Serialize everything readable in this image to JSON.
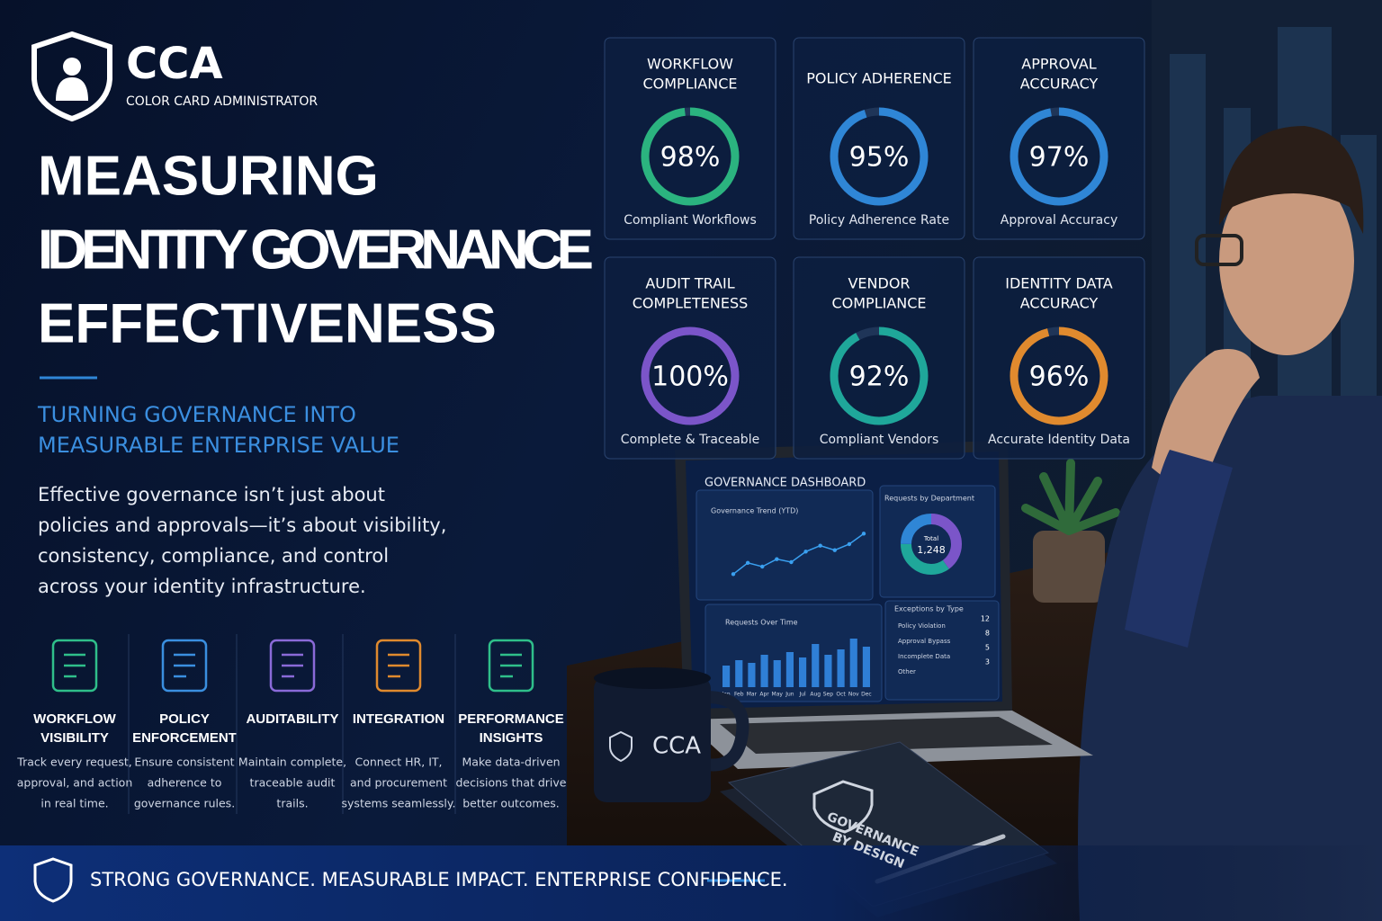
{
  "brand": {
    "name": "CCA",
    "tagline": "COLOR CARD ADMINISTRATOR"
  },
  "headline": [
    "MEASURING",
    "IDENTITY GOVERNANCE",
    "EFFECTIVENESS"
  ],
  "subheadline": [
    "TURNING GOVERNANCE INTO",
    "MEASURABLE ENTERPRISE VALUE"
  ],
  "body": [
    "Effective governance isn’t just about",
    "policies and approvals—it’s about visibility,",
    "consistency, compliance, and control",
    "across your identity infrastructure."
  ],
  "features": [
    {
      "title": [
        "WORKFLOW",
        "VISIBILITY"
      ],
      "text": [
        "Track every request,",
        "approval, and action",
        "in real time."
      ],
      "color": "#2fbf8a"
    },
    {
      "title": [
        "POLICY",
        "ENFORCEMENT"
      ],
      "text": [
        "Ensure consistent",
        "adherence to",
        "governance rules."
      ],
      "color": "#3a8fe0"
    },
    {
      "title": [
        "AUDITABILITY"
      ],
      "text": [
        "Maintain complete,",
        "traceable audit",
        "trails."
      ],
      "color": "#8a6ad8"
    },
    {
      "title": [
        "INTEGRATION"
      ],
      "text": [
        "Connect HR, IT,",
        "and procurement",
        "systems seamlessly."
      ],
      "color": "#e08a2e"
    },
    {
      "title": [
        "PERFORMANCE",
        "INSIGHTS"
      ],
      "text": [
        "Make data-driven",
        "decisions that drive",
        "better outcomes."
      ],
      "color": "#2fbf8a"
    }
  ],
  "kpis": [
    {
      "title": [
        "WORKFLOW",
        "COMPLIANCE"
      ],
      "value": 98,
      "value_label": "98%",
      "caption": "Compliant Workflows",
      "color": "#2bb37f"
    },
    {
      "title": [
        "POLICY ADHERENCE"
      ],
      "value": 95,
      "value_label": "95%",
      "caption": "Policy Adherence Rate",
      "color": "#2f86d6"
    },
    {
      "title": [
        "APPROVAL",
        "ACCURACY"
      ],
      "value": 97,
      "value_label": "97%",
      "caption": "Approval Accuracy",
      "color": "#2f86d6"
    },
    {
      "title": [
        "AUDIT TRAIL",
        "COMPLETENESS"
      ],
      "value": 100,
      "value_label": "100%",
      "caption": "Complete & Traceable",
      "color": "#7b55c9"
    },
    {
      "title": [
        "VENDOR",
        "COMPLIANCE"
      ],
      "value": 92,
      "value_label": "92%",
      "caption": "Compliant Vendors",
      "color": "#1fa79a"
    },
    {
      "title": [
        "IDENTITY DATA",
        "ACCURACY"
      ],
      "value": 96,
      "value_label": "96%",
      "caption": "Accurate Identity Data",
      "color": "#e08a2e"
    }
  ],
  "dashboard": {
    "title": "GOVERNANCE DASHBOARD",
    "trend": {
      "title": "Governance Trend (YTD)",
      "values": [
        2,
        3.5,
        3,
        4,
        3.6,
        5,
        5.8,
        5.2,
        6,
        7.4
      ],
      "ylim": [
        0,
        9
      ]
    },
    "donut": {
      "title": "Requests by Department",
      "total_label": "Total",
      "total": "1,248",
      "values": [
        40,
        35,
        25
      ],
      "colors": [
        "#7b55c9",
        "#1fa79a",
        "#2f86d6"
      ]
    },
    "requests": {
      "title": "Requests Over Time",
      "categories": [
        "Jan",
        "Feb",
        "Mar",
        "Apr",
        "May",
        "Jun",
        "Jul",
        "Aug",
        "Sep",
        "Oct",
        "Nov",
        "Dec"
      ],
      "values": [
        4,
        5,
        4.5,
        6,
        5,
        6.5,
        5.5,
        8,
        6,
        7,
        9,
        7.5
      ],
      "ylim": [
        0,
        10
      ]
    },
    "exceptions": {
      "title": "Exceptions by Type",
      "rows": [
        [
          "Policy Violation",
          "12"
        ],
        [
          "Approval Bypass",
          "8"
        ],
        [
          "Incomplete Data",
          "5"
        ],
        [
          "Other",
          "3"
        ]
      ]
    }
  },
  "mug": "CCA",
  "notebook": [
    "GOVERNANCE",
    "BY DESIGN"
  ],
  "footer": "STRONG GOVERNANCE. MEASURABLE IMPACT. ENTERPRISE CONFIDENCE."
}
